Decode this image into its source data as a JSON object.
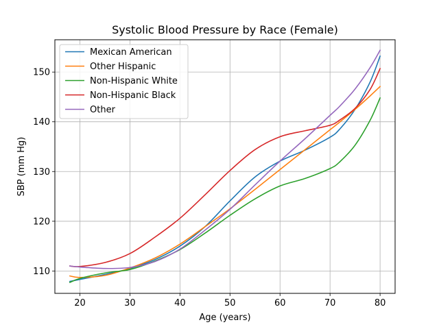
{
  "chart_data": {
    "type": "line",
    "title": "Systolic Blood Pressure by Race (Female)",
    "xlabel": "Age (years)",
    "ylabel": "SBP (mm Hg)",
    "xlim": [
      15,
      83
    ],
    "ylim": [
      105.5,
      156.5
    ],
    "xticks": [
      20,
      30,
      40,
      50,
      60,
      70,
      80
    ],
    "yticks": [
      110,
      120,
      130,
      140,
      150
    ],
    "grid": true,
    "legend": "top-left",
    "x": [
      18,
      20,
      25,
      30,
      35,
      40,
      45,
      50,
      55,
      60,
      65,
      70,
      72,
      75,
      78,
      80
    ],
    "series": [
      {
        "name": "Mexican American",
        "color": "#1f77b4",
        "values": [
          107.9,
          108.3,
          109.3,
          110.5,
          112.3,
          115.0,
          118.9,
          124.1,
          128.9,
          132.1,
          134.3,
          136.9,
          138.6,
          142.5,
          148.0,
          153.2
        ]
      },
      {
        "name": "Other Hispanic",
        "color": "#ff7f0e",
        "values": [
          109.0,
          108.7,
          109.1,
          110.6,
          112.6,
          115.4,
          118.9,
          122.5,
          126.4,
          130.4,
          134.4,
          138.4,
          140.0,
          142.5,
          145.2,
          147.1
        ]
      },
      {
        "name": "Non-Hispanic White",
        "color": "#2ca02c",
        "values": [
          107.7,
          108.5,
          109.6,
          110.3,
          112.0,
          114.3,
          117.6,
          121.2,
          124.5,
          127.1,
          128.6,
          130.6,
          132.0,
          135.3,
          140.3,
          144.8
        ]
      },
      {
        "name": "Non-Hispanic Black",
        "color": "#d62728",
        "values": [
          111.0,
          110.9,
          111.7,
          113.5,
          116.8,
          120.6,
          125.3,
          130.2,
          134.4,
          137.0,
          138.2,
          139.3,
          140.4,
          142.7,
          146.5,
          150.7
        ]
      },
      {
        "name": "Other",
        "color": "#9467bd",
        "values": [
          111.0,
          110.8,
          110.5,
          110.7,
          111.9,
          114.4,
          118.2,
          122.4,
          127.3,
          132.1,
          136.6,
          141.3,
          143.2,
          146.6,
          150.9,
          154.4
        ]
      }
    ]
  }
}
